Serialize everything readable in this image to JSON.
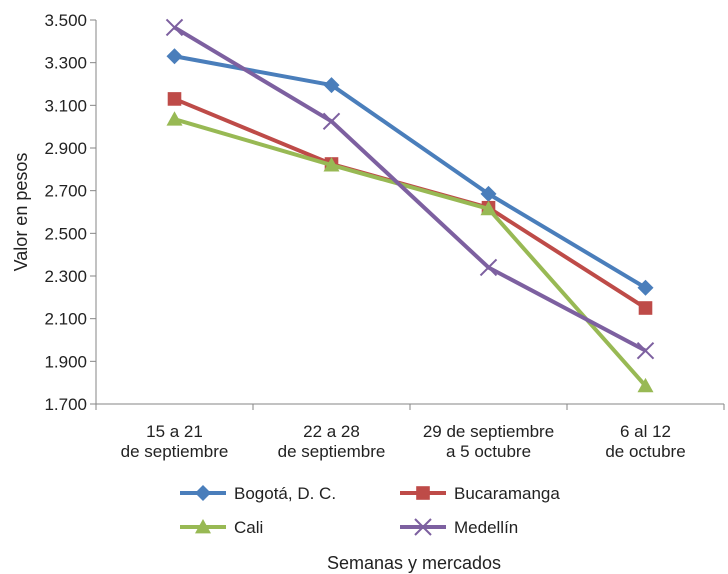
{
  "chart_data": {
    "type": "line",
    "ylabel": "Valor en pesos",
    "xlabel": "Semanas y mercados",
    "ylim": [
      1700,
      3500
    ],
    "y_ticks": [
      "1.700",
      "1.900",
      "2.100",
      "2.300",
      "2.500",
      "2.700",
      "2.900",
      "3.100",
      "3.300",
      "3.500"
    ],
    "categories": [
      [
        "15 a 21",
        "de septiembre"
      ],
      [
        "22 a 28",
        "de septiembre"
      ],
      [
        "29 de septiembre",
        "a 5 octubre"
      ],
      [
        "6 al 12",
        "de octubre"
      ]
    ],
    "series": [
      {
        "name": "Bogotá, D. C.",
        "color": "#4a7ebb",
        "marker": "diamond",
        "values": [
          3330,
          3195,
          2685,
          2245
        ]
      },
      {
        "name": "Bucaramanga",
        "color": "#be4b48",
        "marker": "square",
        "values": [
          3130,
          2825,
          2620,
          2150
        ]
      },
      {
        "name": "Cali",
        "color": "#98b954",
        "marker": "triangle",
        "values": [
          3035,
          2820,
          2615,
          1785
        ]
      },
      {
        "name": "Medellín",
        "color": "#7d60a0",
        "marker": "x",
        "values": [
          3465,
          3025,
          2340,
          1950
        ]
      }
    ],
    "grid": false,
    "legend_position": "bottom"
  }
}
